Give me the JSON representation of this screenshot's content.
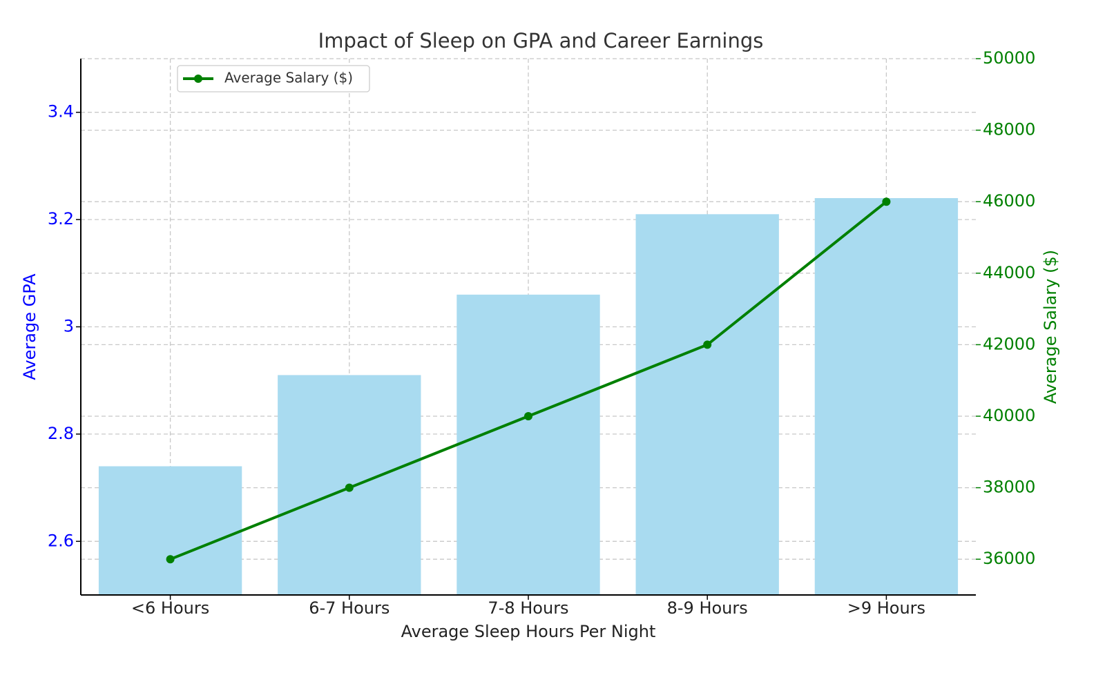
{
  "chart_data": {
    "type": "bar",
    "title": "Impact of Sleep on GPA and Career Earnings",
    "xlabel": "Average Sleep Hours Per Night",
    "ylabel": "Average GPA",
    "y2label": "Average Salary ($)",
    "categories": [
      "<6 Hours",
      "6-7 Hours",
      "7-8 Hours",
      "8-9 Hours",
      ">9 Hours"
    ],
    "series": [
      {
        "type": "bar",
        "color": "#a9dbf0",
        "values": [
          2.74,
          2.91,
          3.06,
          3.21,
          3.24
        ]
      },
      {
        "type": "line",
        "name": "Average Salary ($)",
        "color": "#008000",
        "axis": "y2",
        "values": [
          36000,
          38000,
          40000,
          42000,
          46000
        ]
      }
    ],
    "ylim": [
      2.5,
      3.5
    ],
    "yticks": [
      2.6,
      2.8,
      3.0,
      3.2,
      3.4
    ],
    "y2lim": [
      35000,
      50000
    ],
    "y2ticks": [
      36000,
      38000,
      40000,
      42000,
      44000,
      46000,
      48000,
      50000
    ],
    "ycolor": "#0000ff",
    "y2color": "#008000",
    "grid": true,
    "legend": "upper left"
  }
}
